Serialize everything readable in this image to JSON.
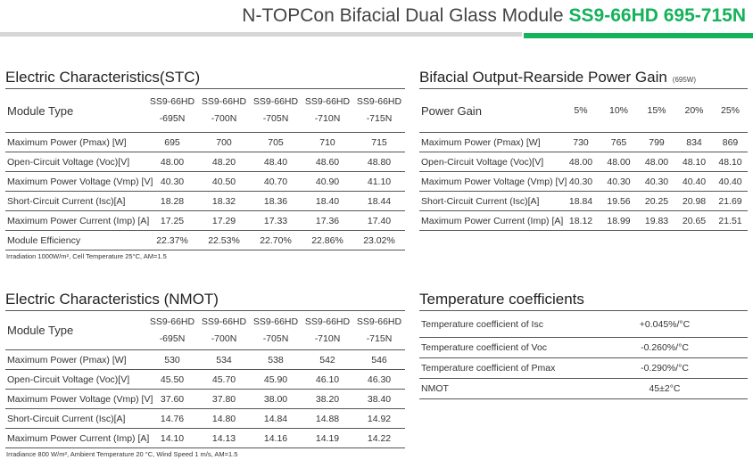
{
  "header": {
    "subtitle": "N-TOPCon Bifacial Dual Glass Module",
    "model": "SS9-66HD 695-715N",
    "accent_color": "#14b25a"
  },
  "stc": {
    "title": "Electric Characteristics(STC)",
    "header_label": "Module Type",
    "columns": [
      {
        "line1": "SS9-66HD",
        "line2": "-695N"
      },
      {
        "line1": "SS9-66HD",
        "line2": "-700N"
      },
      {
        "line1": "SS9-66HD",
        "line2": "-705N"
      },
      {
        "line1": "SS9-66HD",
        "line2": "-710N"
      },
      {
        "line1": "SS9-66HD",
        "line2": "-715N"
      }
    ],
    "rows": [
      {
        "label": "Maximum Power (Pmax) [W]",
        "values": [
          "695",
          "700",
          "705",
          "710",
          "715"
        ]
      },
      {
        "label": "Open-Circuit Voltage (Voc)[V]",
        "values": [
          "48.00",
          "48.20",
          "48.40",
          "48.60",
          "48.80"
        ]
      },
      {
        "label": "Maximum Power Voltage (Vmp) [V]",
        "values": [
          "40.30",
          "40.50",
          "40.70",
          "40.90",
          "41.10"
        ]
      },
      {
        "label": "Short-Circuit Current (Isc)[A]",
        "values": [
          "18.28",
          "18.32",
          "18.36",
          "18.40",
          "18.44"
        ]
      },
      {
        "label": "Maximum Power Current (Imp) [A]",
        "values": [
          "17.25",
          "17.29",
          "17.33",
          "17.36",
          "17.40"
        ]
      },
      {
        "label": "Module Efficiency",
        "values": [
          "22.37%",
          "22.53%",
          "22.70%",
          "22.86%",
          "23.02%"
        ]
      }
    ],
    "note": "Irradiation 1000W/m², Cell Temperature 25°C, AM=1.5"
  },
  "bifacial": {
    "title": "Bifacial Output-Rearside Power Gain",
    "title_note": "(695W)",
    "header_label": "Power Gain",
    "columns": [
      "5%",
      "10%",
      "15%",
      "20%",
      "25%"
    ],
    "rows": [
      {
        "label": "Maximum Power (Pmax) [W]",
        "values": [
          "730",
          "765",
          "799",
          "834",
          "869"
        ]
      },
      {
        "label": "Open-Circuit Voltage (Voc)[V]",
        "values": [
          "48.00",
          "48.00",
          "48.00",
          "48.10",
          "48.10"
        ]
      },
      {
        "label": "Maximum Power Voltage (Vmp) [V]",
        "values": [
          "40.30",
          "40.30",
          "40.30",
          "40.40",
          "40.40"
        ]
      },
      {
        "label": "Short-Circuit Current (Isc)[A]",
        "values": [
          "18.84",
          "19.56",
          "20.25",
          "20.98",
          "21.69"
        ]
      },
      {
        "label": "Maximum Power Current (Imp) [A]",
        "values": [
          "18.12",
          "18.99",
          "19.83",
          "20.65",
          "21.51"
        ]
      }
    ]
  },
  "nmot": {
    "title": "Electric Characteristics (NMOT)",
    "header_label": "Module Type",
    "columns": [
      {
        "line1": "SS9-66HD",
        "line2": "-695N"
      },
      {
        "line1": "SS9-66HD",
        "line2": "-700N"
      },
      {
        "line1": "SS9-66HD",
        "line2": "-705N"
      },
      {
        "line1": "SS9-66HD",
        "line2": "-710N"
      },
      {
        "line1": "SS9-66HD",
        "line2": "-715N"
      }
    ],
    "rows": [
      {
        "label": "Maximum Power (Pmax) [W]",
        "values": [
          "530",
          "534",
          "538",
          "542",
          "546"
        ]
      },
      {
        "label": "Open-Circuit Voltage (Voc)[V]",
        "values": [
          "45.50",
          "45.70",
          "45.90",
          "46.10",
          "46.30"
        ]
      },
      {
        "label": "Maximum Power Voltage (Vmp) [V]",
        "values": [
          "37.60",
          "37.80",
          "38.00",
          "38.20",
          "38.40"
        ]
      },
      {
        "label": "Short-Circuit Current (Isc)[A]",
        "values": [
          "14.76",
          "14.80",
          "14.84",
          "14.88",
          "14.92"
        ]
      },
      {
        "label": "Maximum Power Current (Imp) [A]",
        "values": [
          "14.10",
          "14.13",
          "14.16",
          "14.19",
          "14.22"
        ]
      }
    ],
    "note": "Irradiance 800 W/m², Ambient Temperature 20 °C, Wind Speed 1 m/s, AM=1.5"
  },
  "temperature": {
    "title": "Temperature coefficients",
    "rows": [
      {
        "label": "Temperature coefficient of Isc",
        "value": "+0.045%/°C"
      },
      {
        "label": "Temperature coefficient of Voc",
        "value": "-0.260%/°C"
      },
      {
        "label": "Temperature coefficient of Pmax",
        "value": "-0.290%/°C"
      },
      {
        "label": "NMOT",
        "value": "45±2°C"
      }
    ]
  }
}
